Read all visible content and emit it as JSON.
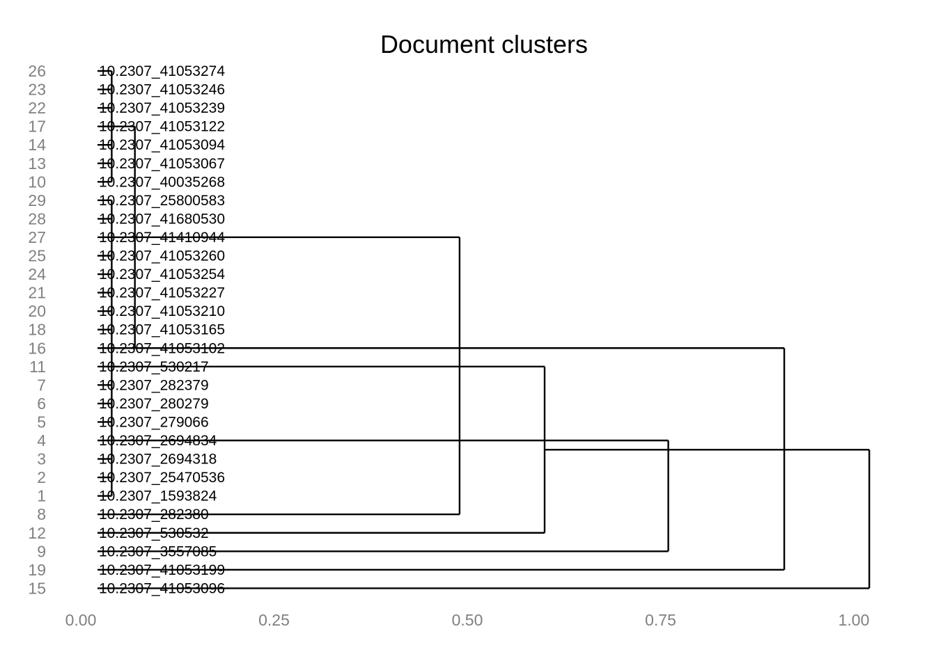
{
  "chart_data": {
    "type": "dendrogram",
    "title": "Document clusters",
    "xlim": [
      0.0,
      1.0
    ],
    "xticks": [
      0.0,
      0.25,
      0.5,
      0.75,
      1.0
    ],
    "xtick_labels": [
      "0.00",
      "0.25",
      "0.50",
      "0.75",
      "1.00"
    ],
    "grid": false,
    "legend": "none",
    "leaves": [
      {
        "index": "26",
        "label": "10.2307_41053274"
      },
      {
        "index": "23",
        "label": "10.2307_41053246"
      },
      {
        "index": "22",
        "label": "10.2307_41053239"
      },
      {
        "index": "17",
        "label": "10.2307_41053122"
      },
      {
        "index": "14",
        "label": "10.2307_41053094"
      },
      {
        "index": "13",
        "label": "10.2307_41053067"
      },
      {
        "index": "10",
        "label": "10.2307_40035268"
      },
      {
        "index": "29",
        "label": "10.2307_25800583"
      },
      {
        "index": "28",
        "label": "10.2307_41680530"
      },
      {
        "index": "27",
        "label": "10.2307_41410944"
      },
      {
        "index": "25",
        "label": "10.2307_41053260"
      },
      {
        "index": "24",
        "label": "10.2307_41053254"
      },
      {
        "index": "21",
        "label": "10.2307_41053227"
      },
      {
        "index": "20",
        "label": "10.2307_41053210"
      },
      {
        "index": "18",
        "label": "10.2307_41053165"
      },
      {
        "index": "16",
        "label": "10.2307_41053102"
      },
      {
        "index": "11",
        "label": "10.2307_530217"
      },
      {
        "index": "7",
        "label": "10.2307_282379"
      },
      {
        "index": "6",
        "label": "10.2307_280279"
      },
      {
        "index": "5",
        "label": "10.2307_279066"
      },
      {
        "index": "4",
        "label": "10.2307_2694834"
      },
      {
        "index": "3",
        "label": "10.2307_2694318"
      },
      {
        "index": "2",
        "label": "10.2307_25470536"
      },
      {
        "index": "1",
        "label": "10.2307_1593824"
      },
      {
        "index": "8",
        "label": "10.2307_282380"
      },
      {
        "index": "12",
        "label": "10.2307_530532"
      },
      {
        "index": "9",
        "label": "10.2307_3557085"
      },
      {
        "index": "19",
        "label": "10.2307_41053199"
      },
      {
        "index": "15",
        "label": "10.2307_41053096"
      }
    ],
    "merges": [
      {
        "height": 0.04,
        "members": [
          0,
          6
        ]
      },
      {
        "height": 0.04,
        "members": [
          7,
          23
        ]
      },
      {
        "height": 0.07,
        "members": [
          3,
          15
        ]
      },
      {
        "height": 0.49,
        "members": [
          9,
          24
        ]
      },
      {
        "height": 0.6,
        "members": [
          16,
          25
        ]
      },
      {
        "height": 0.76,
        "members": [
          20,
          26
        ]
      },
      {
        "height": 0.91,
        "members": [
          23,
          27
        ]
      },
      {
        "height": 1.02,
        "members": [
          25,
          28
        ]
      }
    ]
  }
}
